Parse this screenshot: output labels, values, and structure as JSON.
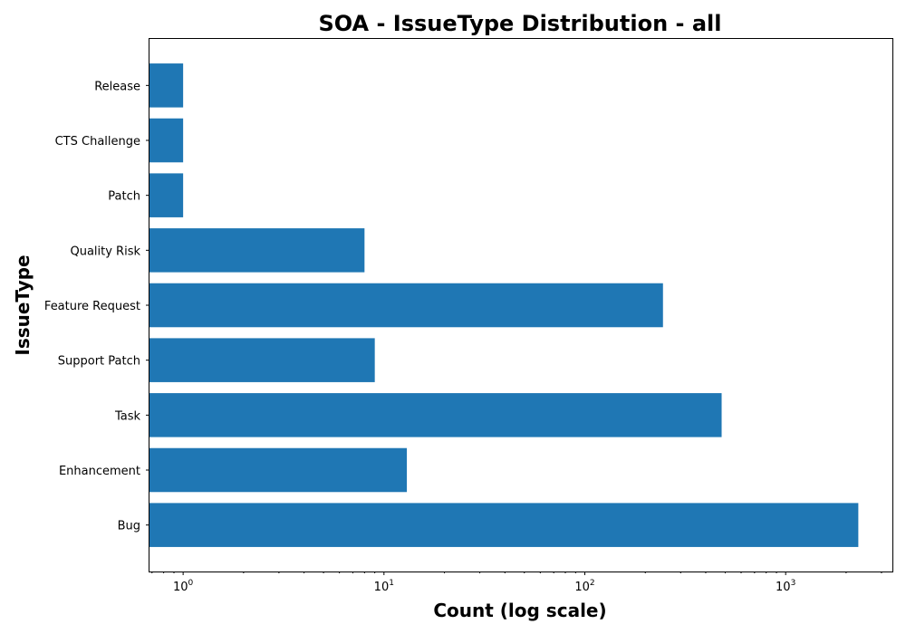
{
  "chart_data": {
    "type": "bar",
    "orientation": "horizontal",
    "title": "SOA - IssueType Distribution - all",
    "xlabel": "Count (log scale)",
    "ylabel": "IssueType",
    "x_scale": "log",
    "xlim": [
      0.68,
      3400
    ],
    "x_ticks": [
      {
        "value": 1,
        "base": "10",
        "exp": "0"
      },
      {
        "value": 10,
        "base": "10",
        "exp": "1"
      },
      {
        "value": 100,
        "base": "10",
        "exp": "2"
      },
      {
        "value": 1000,
        "base": "10",
        "exp": "3"
      }
    ],
    "categories": [
      "Bug",
      "Enhancement",
      "Task",
      "Support Patch",
      "Feature Request",
      "Quality Risk",
      "Patch",
      "CTS Challenge",
      "Release"
    ],
    "values": [
      2300,
      13,
      480,
      9,
      245,
      8,
      1,
      1,
      1
    ],
    "bar_color": "#1f77b4",
    "grid": false,
    "legend": "none"
  }
}
